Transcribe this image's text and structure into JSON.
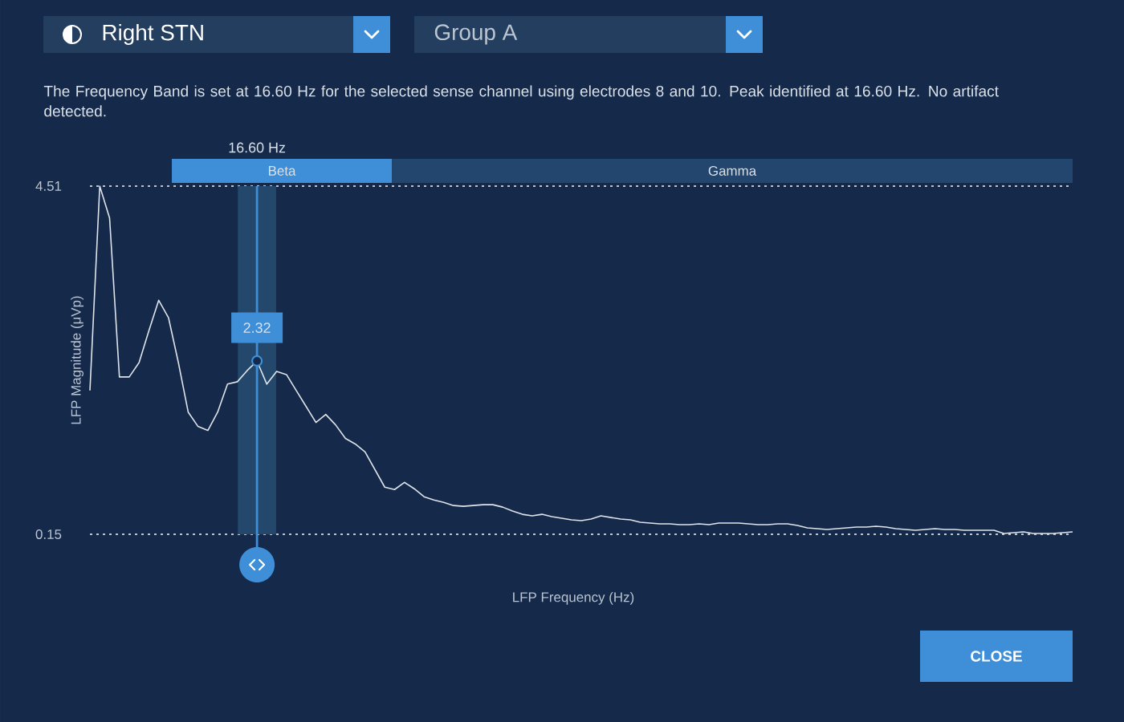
{
  "chart_data": {
    "type": "line",
    "xlabel": "LFP Frequency (Hz)",
    "ylabel": "LFP Magnitude (μVp)",
    "categories": [
      null,
      null,
      null,
      null,
      null,
      null,
      null,
      null,
      null,
      null,
      null,
      null,
      null,
      null,
      null,
      null,
      null,
      null,
      null,
      null,
      null,
      null,
      null,
      null,
      null,
      null,
      null,
      null,
      null,
      null,
      null,
      null,
      null,
      null,
      null,
      null,
      null,
      null,
      null,
      null,
      null,
      null,
      null,
      null,
      null,
      null,
      null,
      null,
      null,
      null,
      null,
      null,
      null,
      null,
      null,
      null,
      null,
      null,
      null,
      null,
      null,
      null,
      null,
      null,
      null,
      null,
      null,
      null,
      null,
      null,
      null,
      null,
      null,
      null,
      null,
      null,
      null,
      null,
      null,
      null,
      null,
      null,
      null,
      null,
      null,
      null,
      null,
      null,
      null,
      null,
      null,
      null,
      null,
      null,
      null,
      null,
      null,
      null,
      null,
      null,
      null
    ],
    "values": [
      1.95,
      4.51,
      4.11,
      2.12,
      2.12,
      2.3,
      2.7,
      3.08,
      2.86,
      2.3,
      1.68,
      1.5,
      1.45,
      1.68,
      2.03,
      2.06,
      2.2,
      2.32,
      2.03,
      2.19,
      2.15,
      1.95,
      1.75,
      1.55,
      1.65,
      1.52,
      1.35,
      1.28,
      1.18,
      0.96,
      0.74,
      0.71,
      0.8,
      0.72,
      0.62,
      0.58,
      0.55,
      0.51,
      0.5,
      0.51,
      0.52,
      0.52,
      0.49,
      0.44,
      0.4,
      0.38,
      0.4,
      0.37,
      0.35,
      0.33,
      0.32,
      0.34,
      0.38,
      0.36,
      0.34,
      0.33,
      0.3,
      0.29,
      0.28,
      0.28,
      0.27,
      0.27,
      0.28,
      0.27,
      0.29,
      0.29,
      0.29,
      0.28,
      0.27,
      0.27,
      0.28,
      0.28,
      0.26,
      0.23,
      0.22,
      0.21,
      0.22,
      0.23,
      0.24,
      0.24,
      0.25,
      0.24,
      0.22,
      0.21,
      0.2,
      0.21,
      0.22,
      0.21,
      0.21,
      0.2,
      0.2,
      0.2,
      0.2,
      0.16,
      0.17,
      0.18,
      0.16,
      0.16,
      0.16,
      0.17,
      0.18
    ],
    "color": "#dfe4ea",
    "ylim": [
      0.15,
      4.51
    ],
    "yticks": [
      0.15,
      4.51
    ],
    "grid": "y",
    "marker": "none",
    "line_style": "solid",
    "annotations": [
      "Right STN",
      "Group A",
      "The Frequency Band is set at 16.60 Hz for the selected sense channel using electrodes 8 and 10. Peak identified at 16.60 Hz. No artifact detected.",
      "16.60 Hz",
      "Beta",
      "Gamma",
      {
        "text": "2.32",
        "y": 2.32
      },
      "CLOSE"
    ]
  }
}
